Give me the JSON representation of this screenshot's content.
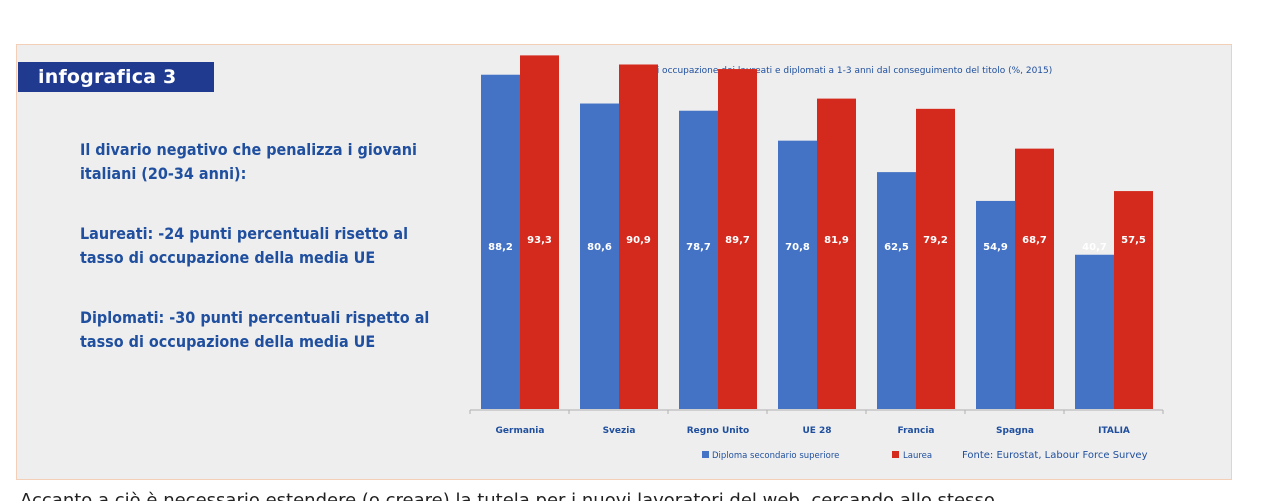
{
  "infographic": {
    "tag": "infografica 3",
    "lines": [
      "Il divario negativo che penalizza i giovani",
      "italiani (20-34 anni):",
      "Laureati: -24 punti percentuali risetto al",
      "tasso di occupazione della media UE",
      "Diplomati: -30  punti percentuali rispetto al",
      "tasso di occupazione della media UE"
    ]
  },
  "chart_data": {
    "type": "bar",
    "title": "Tasso di occupazione dei laureati e diplomati a 1-3 anni dal conseguimento del titolo (%, 2015)",
    "categories": [
      "Germania",
      "Svezia",
      "Regno Unito",
      "UE 28",
      "Francia",
      "Spagna",
      "ITALIA"
    ],
    "series": [
      {
        "name": "Diploma secondario superiore",
        "color": "#4472c4",
        "values": [
          88.2,
          80.6,
          78.7,
          70.8,
          62.5,
          54.9,
          40.7
        ],
        "labels": [
          "88,2",
          "80,6",
          "78,7",
          "70,8",
          "62,5",
          "54,9",
          "40,7"
        ]
      },
      {
        "name": "Laurea",
        "color": "#d42a1e",
        "values": [
          93.3,
          90.9,
          89.7,
          81.9,
          79.2,
          68.7,
          57.5
        ],
        "labels": [
          "93,3",
          "90,9",
          "89,7",
          "81,9",
          "79,2",
          "68,7",
          "57,5"
        ]
      }
    ],
    "ylim": [
      0,
      100
    ],
    "legend_position": "bottom",
    "source": "Fonte: Eurostat, Labour Force Survey"
  },
  "page": {
    "bottom_text": "Accanto a ciò è necessario estendere (o creare) la tutela per i nuovi lavoratori del web, cercando allo stesso"
  }
}
